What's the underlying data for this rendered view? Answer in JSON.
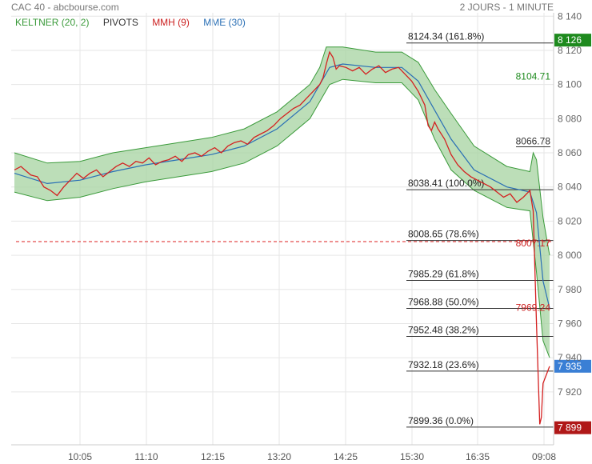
{
  "header": {
    "title": "CAC 40 - abcbourse.com",
    "period": "2 JOURS - 1 MINUTE"
  },
  "legend": [
    {
      "label": "KELTNER (20, 2)",
      "color": "#3a9a3a"
    },
    {
      "label": "PIVOTS",
      "color": "#333333"
    },
    {
      "label": "MMH (9)",
      "color": "#cc2222"
    },
    {
      "label": "MME (30)",
      "color": "#2a6fb5"
    }
  ],
  "colors": {
    "keltner": "#3a9a3a",
    "keltner_fill": "#a6d3a0",
    "price": "#d42020",
    "mme": "#2a6fb5",
    "pivot": "#333333",
    "grid": "#e6e6e6",
    "badge_green": "#1e8a1e",
    "badge_blue": "#3a7fd5",
    "badge_red": "#b01818"
  },
  "chart_data": {
    "type": "line",
    "title": "CAC 40",
    "x_ticks": [
      "10:05",
      "11:10",
      "12:15",
      "13:20",
      "14:25",
      "15:30",
      "16:35",
      "09:08"
    ],
    "y_ticks": [
      8140,
      8120,
      8100,
      8080,
      8060,
      8040,
      8020,
      8000,
      7980,
      7960,
      7940,
      7920
    ],
    "ylim": [
      7889,
      8142
    ],
    "series": [
      {
        "name": "MMH (9)",
        "points": [
          [
            0,
            8050
          ],
          [
            4,
            8052
          ],
          [
            10,
            8047
          ],
          [
            14,
            8046
          ],
          [
            18,
            8040
          ],
          [
            22,
            8038
          ],
          [
            26,
            8035
          ],
          [
            30,
            8040
          ],
          [
            34,
            8044
          ],
          [
            38,
            8048
          ],
          [
            42,
            8045
          ],
          [
            46,
            8048
          ],
          [
            50,
            8050
          ],
          [
            54,
            8046
          ],
          [
            58,
            8049
          ],
          [
            62,
            8052
          ],
          [
            66,
            8054
          ],
          [
            70,
            8052
          ],
          [
            74,
            8055
          ],
          [
            78,
            8054
          ],
          [
            82,
            8057
          ],
          [
            86,
            8053
          ],
          [
            90,
            8055
          ],
          [
            94,
            8056
          ],
          [
            98,
            8058
          ],
          [
            102,
            8055
          ],
          [
            106,
            8059
          ],
          [
            110,
            8060
          ],
          [
            114,
            8058
          ],
          [
            118,
            8061
          ],
          [
            122,
            8063
          ],
          [
            126,
            8060
          ],
          [
            130,
            8064
          ],
          [
            134,
            8066
          ],
          [
            138,
            8067
          ],
          [
            142,
            8065
          ],
          [
            146,
            8069
          ],
          [
            150,
            8071
          ],
          [
            154,
            8073
          ],
          [
            158,
            8076
          ],
          [
            162,
            8080
          ],
          [
            166,
            8083
          ],
          [
            170,
            8086
          ],
          [
            174,
            8088
          ],
          [
            178,
            8092
          ],
          [
            182,
            8096
          ],
          [
            186,
            8100
          ],
          [
            188,
            8104
          ],
          [
            190,
            8112
          ],
          [
            192,
            8119
          ],
          [
            194,
            8116
          ],
          [
            196,
            8109
          ],
          [
            198,
            8111
          ],
          [
            202,
            8110
          ],
          [
            206,
            8108
          ],
          [
            210,
            8110
          ],
          [
            214,
            8106
          ],
          [
            218,
            8109
          ],
          [
            222,
            8111
          ],
          [
            226,
            8107
          ],
          [
            230,
            8109
          ],
          [
            234,
            8110
          ],
          [
            238,
            8106
          ],
          [
            242,
            8102
          ],
          [
            246,
            8096
          ],
          [
            250,
            8088
          ],
          [
            252,
            8076
          ],
          [
            254,
            8073
          ],
          [
            256,
            8078
          ],
          [
            258,
            8074
          ],
          [
            262,
            8068
          ],
          [
            266,
            8059
          ],
          [
            270,
            8053
          ],
          [
            274,
            8049
          ],
          [
            278,
            8046
          ],
          [
            282,
            8044
          ],
          [
            286,
            8042
          ],
          [
            290,
            8040
          ],
          [
            294,
            8037
          ],
          [
            298,
            8034
          ],
          [
            302,
            8036
          ],
          [
            306,
            8031
          ],
          [
            310,
            8034
          ],
          [
            314,
            8038
          ],
          [
            316,
            8026
          ],
          [
            318,
            7960
          ],
          [
            320,
            7901
          ],
          [
            321,
            7905
          ],
          [
            322,
            7925
          ],
          [
            324,
            7930
          ],
          [
            326,
            7935
          ]
        ]
      },
      {
        "name": "MME (30)",
        "points": [
          [
            0,
            8048
          ],
          [
            20,
            8042
          ],
          [
            40,
            8044
          ],
          [
            60,
            8049
          ],
          [
            80,
            8053
          ],
          [
            100,
            8056
          ],
          [
            120,
            8059
          ],
          [
            140,
            8064
          ],
          [
            160,
            8074
          ],
          [
            180,
            8090
          ],
          [
            186,
            8100
          ],
          [
            192,
            8110
          ],
          [
            200,
            8112
          ],
          [
            220,
            8110
          ],
          [
            236,
            8110
          ],
          [
            246,
            8102
          ],
          [
            256,
            8085
          ],
          [
            266,
            8068
          ],
          [
            280,
            8050
          ],
          [
            300,
            8040
          ],
          [
            314,
            8037
          ],
          [
            318,
            8025
          ],
          [
            322,
            7985
          ],
          [
            326,
            7969
          ]
        ]
      }
    ],
    "keltner_upper": [
      [
        0,
        8060
      ],
      [
        20,
        8054
      ],
      [
        40,
        8055
      ],
      [
        60,
        8060
      ],
      [
        80,
        8063
      ],
      [
        100,
        8066
      ],
      [
        120,
        8069
      ],
      [
        140,
        8074
      ],
      [
        160,
        8084
      ],
      [
        180,
        8100
      ],
      [
        186,
        8110
      ],
      [
        190,
        8122
      ],
      [
        200,
        8122
      ],
      [
        220,
        8119
      ],
      [
        236,
        8119
      ],
      [
        246,
        8113
      ],
      [
        256,
        8097
      ],
      [
        266,
        8083
      ],
      [
        280,
        8064
      ],
      [
        300,
        8052
      ],
      [
        314,
        8049
      ],
      [
        316,
        8060
      ],
      [
        318,
        8056
      ],
      [
        322,
        8022
      ],
      [
        326,
        8000
      ]
    ],
    "keltner_lower": [
      [
        0,
        8037
      ],
      [
        20,
        8032
      ],
      [
        40,
        8034
      ],
      [
        60,
        8039
      ],
      [
        80,
        8043
      ],
      [
        100,
        8046
      ],
      [
        120,
        8049
      ],
      [
        140,
        8054
      ],
      [
        160,
        8064
      ],
      [
        180,
        8080
      ],
      [
        186,
        8090
      ],
      [
        192,
        8100
      ],
      [
        200,
        8103
      ],
      [
        220,
        8101
      ],
      [
        236,
        8101
      ],
      [
        246,
        8091
      ],
      [
        256,
        8068
      ],
      [
        266,
        8050
      ],
      [
        280,
        8038
      ],
      [
        300,
        8028
      ],
      [
        314,
        8026
      ],
      [
        318,
        7990
      ],
      [
        322,
        7950
      ],
      [
        326,
        7940
      ]
    ],
    "fibonacci": [
      {
        "label": "8124.34",
        "pct": "(161.8%)",
        "value": 8124.34
      },
      {
        "label": "8038.41",
        "pct": "(100.0%)",
        "value": 8038.41
      },
      {
        "label": "8008.65",
        "pct": "(78.6%)",
        "value": 8008.65
      },
      {
        "label": "7985.29",
        "pct": "(61.8%)",
        "value": 7985.29
      },
      {
        "label": "7968.88",
        "pct": "(50.0%)",
        "value": 7968.88
      },
      {
        "label": "7952.48",
        "pct": "(38.2%)",
        "value": 7952.48
      },
      {
        "label": "7932.18",
        "pct": "(23.6%)",
        "value": 7932.18
      },
      {
        "label": "7899.36",
        "pct": "(0.0%)",
        "value": 7899.36
      }
    ],
    "annotations": [
      {
        "label": "8104.71",
        "value": 8104.71,
        "color": "#1e8a1e"
      },
      {
        "label": "8066.78",
        "value": 8066.78,
        "color": "#333333",
        "underline": true
      },
      {
        "label": "8007.17",
        "value": 8007.17,
        "color": "#cc2222"
      },
      {
        "label": "7969.24",
        "value": 7969.24,
        "color": "#cc2222"
      }
    ],
    "reference_line": {
      "value": 8008,
      "color": "#dd2222"
    },
    "price_badges": [
      {
        "label": "8 126",
        "value": 8126,
        "color": "#1e8a1e"
      },
      {
        "label": "7 935",
        "value": 7935,
        "color": "#3a7fd5"
      },
      {
        "label": "7 899",
        "value": 7899,
        "color": "#b01818"
      }
    ],
    "grid": true
  }
}
